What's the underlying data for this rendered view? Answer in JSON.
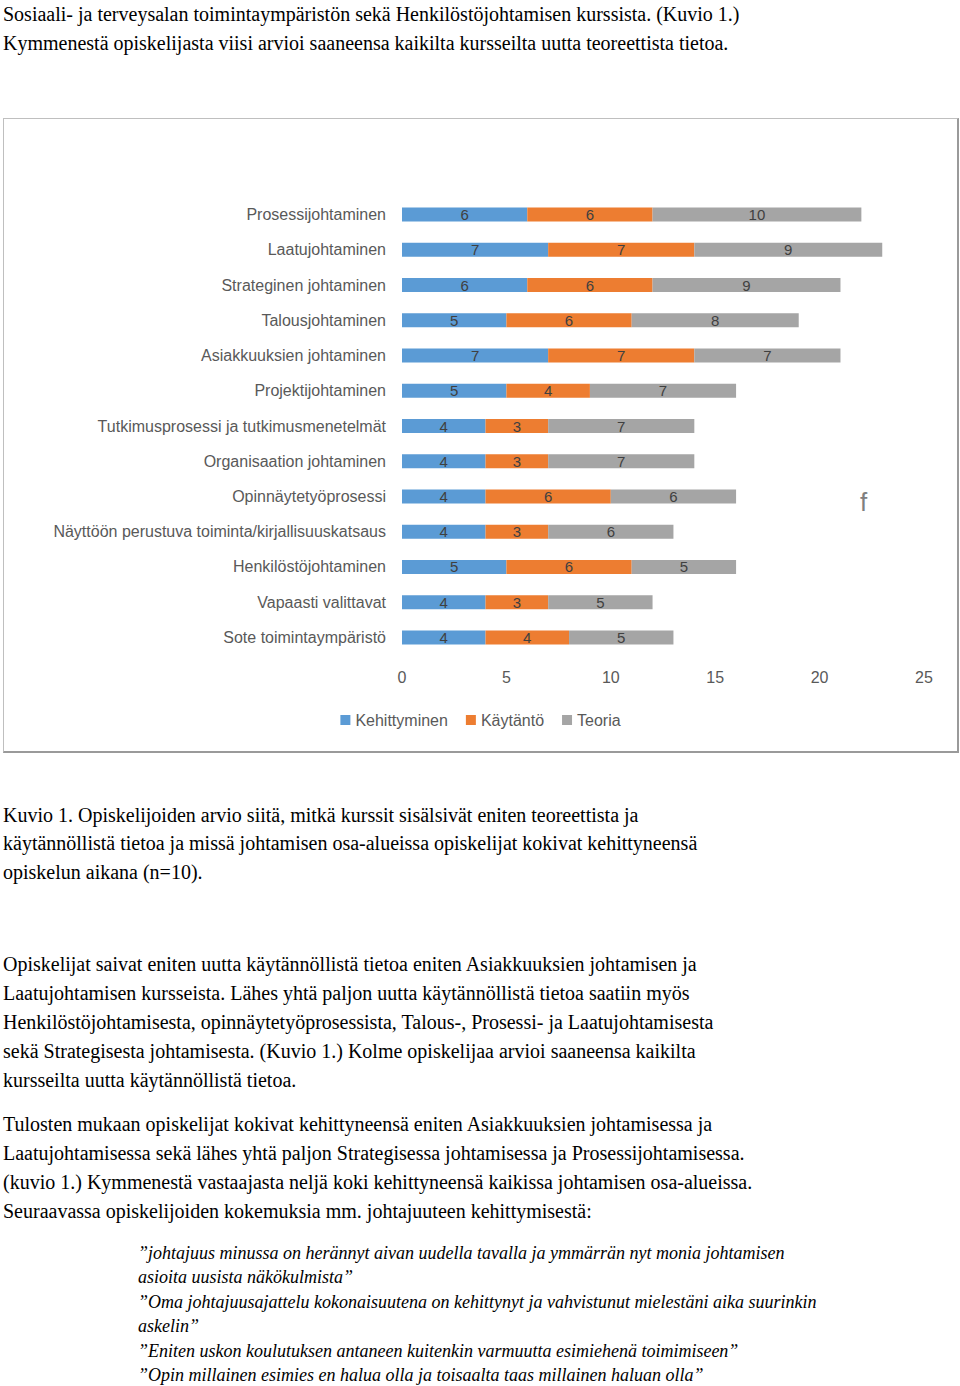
{
  "document": {
    "intro_lines": [
      "Sosiaali- ja terveysalan toimintaympäristön sekä Henkilöstöjohtamisen kurssista. (Kuvio 1.)",
      "Kymmenestä opiskelijasta viisi arvioi saaneensa kaikilta kursseilta uutta teoreettista tietoa."
    ],
    "caption_lines": [
      "Kuvio 1. Opiskelijoiden arvio siitä, mitkä kurssit sisälsivät eniten teoreettista ja",
      "käytännöllistä tietoa ja missä johtamisen osa-alueissa opiskelijat kokivat kehittyneensä",
      "opiskelun aikana (n=10)."
    ],
    "paragraphs": [
      [
        "Opiskelijat saivat eniten uutta käytännöllistä tietoa eniten Asiakkuuksien johtamisen ja",
        "Laatujohtamisen kursseista. Lähes yhtä paljon uutta käytännöllistä tietoa saatiin myös",
        "Henkilöstöjohtamisesta, opinnäytetyöprosessista, Talous-, Prosessi- ja Laatujohtamisesta",
        "sekä Strategisesta johtamisesta. (Kuvio 1.) Kolme opiskelijaa arvioi saaneensa kaikilta",
        "kursseilta uutta käytännöllistä tietoa."
      ],
      [
        "Tulosten mukaan opiskelijat kokivat kehittyneensä eniten Asiakkuuksien johtamisessa ja",
        "Laatujohtamisessa sekä lähes yhtä paljon Strategisessa johtamisessa ja Prosessijohtamisessa.",
        "(kuvio 1.) Kymmenestä vastaajasta neljä koki kehittyneensä kaikissa johtamisen osa-alueissa.",
        "Seuraavassa opiskelijoiden kokemuksia mm. johtajuuteen kehittymisestä:"
      ]
    ],
    "quotes": [
      [
        "”johtajuus minussa on herännyt aivan uudella tavalla ja ymmärrän nyt monia johtamisen",
        "asioita uusista näkökulmista”"
      ],
      [
        "”Oma johtajuusajattelu kokonaisuutena on kehittynyt ja vahvistunut mielestäni aika suurinkin",
        "askelin”"
      ],
      [
        "”Eniten uskon koulutuksen antaneen kuitenkin varmuutta esimiehenä toimimiseen”"
      ],
      [
        "”Opin millainen esimies en halua olla ja toisaalta taas millainen haluan olla”"
      ]
    ]
  },
  "chart_data": {
    "type": "bar",
    "orientation": "horizontal",
    "stacked": true,
    "data_labels": true,
    "grid": false,
    "legend": "bottom",
    "categories": [
      "Prosessijohtaminen",
      "Laatujohtaminen",
      "Strateginen johtaminen",
      "Talousjohtaminen",
      "Asiakkuuksien johtaminen",
      "Projektijohtaminen",
      "Tutkimusprosessi ja tutkimusmenetelmät",
      "Organisaation johtaminen",
      "Opinnäytetyöprosessi",
      "Näyttöön perustuva toiminta/kirjallisuuskatsaus",
      "Henkilöstöjohtaminen",
      "Vapaasti valittavat",
      "Sote toimintaympäristö"
    ],
    "series": [
      {
        "name": "Kehittyminen",
        "color": "#5b9bd5",
        "values": [
          6,
          7,
          6,
          5,
          7,
          5,
          4,
          4,
          4,
          4,
          5,
          4,
          4
        ]
      },
      {
        "name": "Käytäntö",
        "color": "#ed7d31",
        "values": [
          6,
          7,
          6,
          6,
          7,
          4,
          3,
          3,
          6,
          3,
          6,
          3,
          4
        ]
      },
      {
        "name": "Teoria",
        "color": "#a5a5a5",
        "values": [
          10,
          9,
          9,
          8,
          7,
          7,
          7,
          7,
          6,
          6,
          5,
          5,
          5
        ]
      }
    ],
    "xlim": [
      0,
      25
    ],
    "xticks": [
      0,
      5,
      10,
      15,
      20,
      25
    ],
    "annotations": [
      "f"
    ]
  }
}
